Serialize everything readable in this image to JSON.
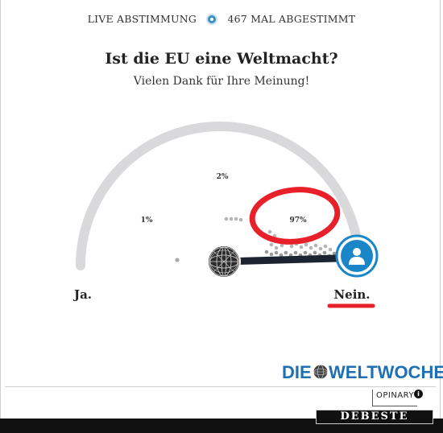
{
  "header": {
    "live_label": "LIVE ABSTIMMUNG",
    "vote_count_label": "467 MAL ABGESTIMMT"
  },
  "poll": {
    "question": "Ist die EU eine Weltmacht?",
    "thanks": "Vielen Dank für Ihre Meinung!",
    "results": [
      {
        "label": "1%",
        "value": 1
      },
      {
        "label": "2%",
        "value": 2
      },
      {
        "label": "97%",
        "value": 97
      }
    ],
    "answer_left": "Ja.",
    "answer_right": "Nein.",
    "selected_answer": "Nein."
  },
  "branding": {
    "logo_left": "DIE",
    "logo_right": "WELTWOCHE",
    "provider": "OPINARY",
    "info_glyph": "i",
    "watermark": "DEBESTE"
  },
  "colors": {
    "accent_blue": "#1a86c8",
    "annotation_red": "#e8202a",
    "gauge_track": "#d9d9db",
    "brand_blue": "#1f6fb5"
  },
  "icons": {
    "live": "radio-dot-icon",
    "user": "user-icon",
    "globe": "globe-icon",
    "info": "info-icon"
  }
}
